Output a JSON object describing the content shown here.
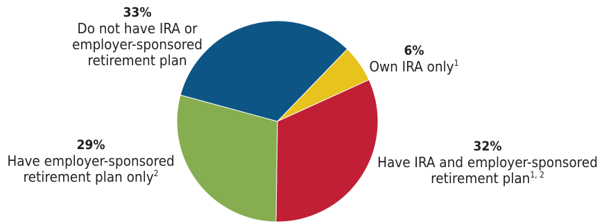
{
  "chart_data": {
    "type": "pie",
    "start_angle_deg": 44,
    "direction": "clockwise",
    "slices": [
      {
        "label": "Own IRA only",
        "note": "1",
        "value": 6,
        "value_label": "6%",
        "color": "#e8c31e"
      },
      {
        "label": "Have IRA and employer-sponsored retirement plan",
        "note": "1, 2",
        "value": 32,
        "value_label": "32%",
        "color": "#c01f35"
      },
      {
        "label": "Have employer-sponsored retirement plan only",
        "note": "2",
        "value": 29,
        "value_label": "29%",
        "color": "#86ad50"
      },
      {
        "label": "Do not have IRA or employer-sponsored retirement plan",
        "note": "",
        "value": 33,
        "value_label": "33%",
        "color": "#0d5585"
      }
    ]
  },
  "labels": {
    "own_ira": {
      "pct": "6%",
      "line1": "Own IRA only",
      "sup": "1"
    },
    "both": {
      "pct": "32%",
      "line1": "Have IRA and employer-sponsored",
      "line2": "retirement plan",
      "sup": "1, 2"
    },
    "employer_only": {
      "pct": "29%",
      "line1": "Have employer-sponsored",
      "line2": "retirement plan only",
      "sup": "2"
    },
    "none": {
      "pct": "33%",
      "line1": "Do not have IRA or",
      "line2": "employer-sponsored",
      "line3": "retirement plan"
    }
  }
}
